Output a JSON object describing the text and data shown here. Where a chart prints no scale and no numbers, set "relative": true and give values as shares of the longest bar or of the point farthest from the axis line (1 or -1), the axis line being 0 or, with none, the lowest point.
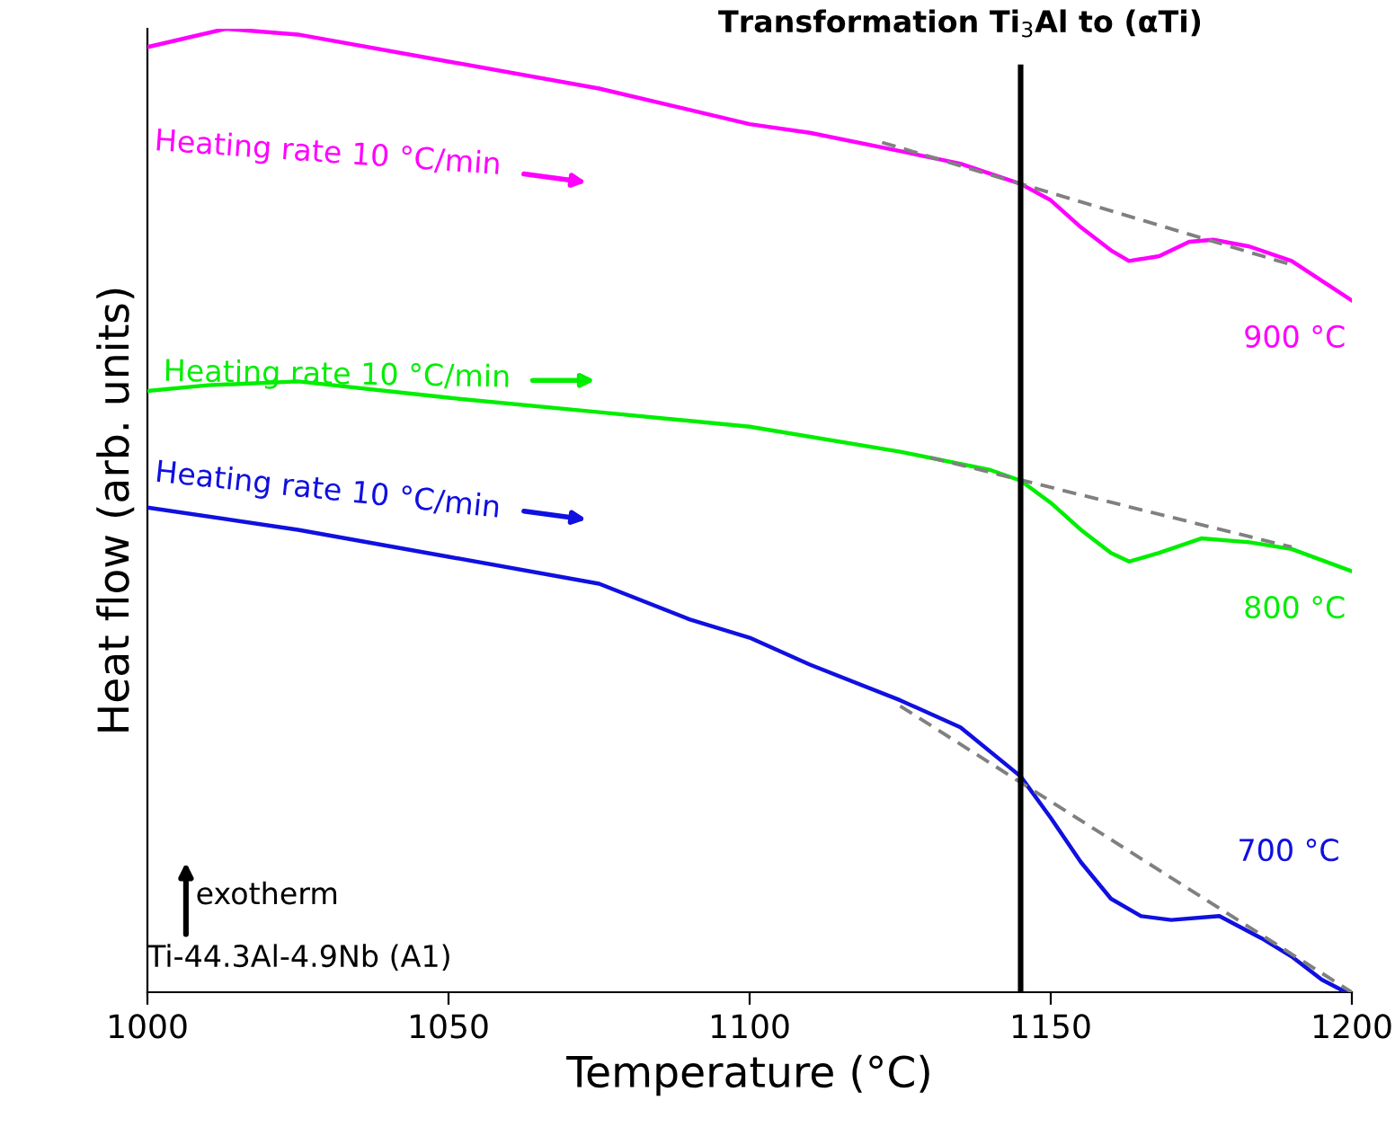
{
  "chart_data": {
    "type": "line",
    "relative": true,
    "xlabel": "Temperature (°C)",
    "ylabel": "Heat flow (arb. units)",
    "xlim": [
      1000,
      1200
    ],
    "xticks": [
      1000,
      1050,
      1100,
      1150,
      1200
    ],
    "tick_labels": "x",
    "grid": false,
    "legend": false,
    "line_style": "solid",
    "marker": "none",
    "series": [
      {
        "name": "900 °C",
        "color": "#ff00ff",
        "x": [
          1000,
          1013,
          1025,
          1050,
          1075,
          1100,
          1110,
          1125,
          1135,
          1145,
          1150,
          1155,
          1160,
          1163,
          1168,
          1173,
          1177,
          1183,
          1190,
          1200
        ],
        "values": [
          0.981,
          1.0,
          0.994,
          0.966,
          0.938,
          0.901,
          0.892,
          0.873,
          0.86,
          0.839,
          0.822,
          0.794,
          0.77,
          0.759,
          0.764,
          0.779,
          0.781,
          0.774,
          0.759,
          0.718
        ]
      },
      {
        "name": "800 °C",
        "color": "#00ee00",
        "x": [
          1000,
          1010,
          1025,
          1050,
          1075,
          1100,
          1125,
          1140,
          1145,
          1150,
          1155,
          1160,
          1163,
          1168,
          1175,
          1183,
          1190,
          1200
        ],
        "values": [
          0.624,
          0.63,
          0.634,
          0.617,
          0.602,
          0.587,
          0.561,
          0.542,
          0.531,
          0.508,
          0.48,
          0.456,
          0.447,
          0.456,
          0.471,
          0.467,
          0.46,
          0.437
        ]
      },
      {
        "name": "700 °C",
        "color": "#1010e0",
        "x": [
          1000,
          1025,
          1050,
          1075,
          1090,
          1100,
          1110,
          1125,
          1135,
          1145,
          1150,
          1155,
          1160,
          1165,
          1170,
          1178,
          1185,
          1190,
          1195,
          1199
        ],
        "values": [
          0.503,
          0.48,
          0.452,
          0.424,
          0.387,
          0.368,
          0.34,
          0.303,
          0.275,
          0.224,
          0.181,
          0.135,
          0.097,
          0.079,
          0.075,
          0.079,
          0.056,
          0.037,
          0.013,
          0.0
        ]
      },
      {
        "color": "#808080",
        "line_style": "dashed",
        "x": [
          1122,
          1190
        ],
        "values": [
          0.882,
          0.755
        ]
      },
      {
        "color": "#808080",
        "line_style": "dashed",
        "x": [
          1130,
          1190
        ],
        "values": [
          0.555,
          0.462
        ]
      },
      {
        "color": "#808080",
        "line_style": "dashed",
        "x": [
          1125,
          1200
        ],
        "values": [
          0.297,
          0.0
        ]
      }
    ],
    "ref_lines": [
      {
        "axis": "x",
        "value": 1145,
        "label": "Transformation Ti$_{3}$Al to (αTi)",
        "color": "#000000"
      }
    ],
    "annotations": [
      "Heating rate 10 °C/min",
      "Heating rate 10 °C/min",
      "Heating rate 10 °C/min",
      "exotherm",
      "Ti-44.3Al-4.9Nb (A1)"
    ]
  }
}
